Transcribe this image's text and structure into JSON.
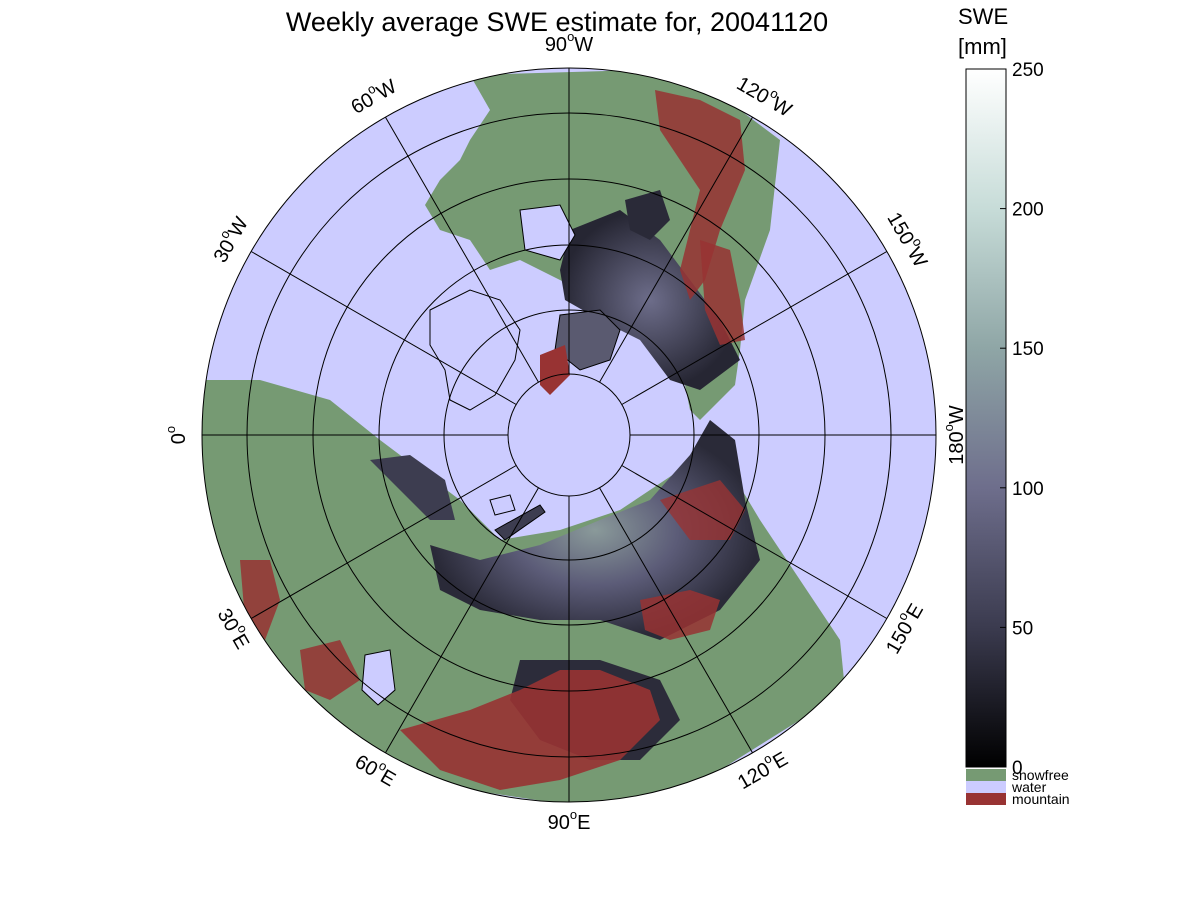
{
  "title": "Weekly average SWE estimate for, 20041120",
  "colorbar": {
    "title_line1": "SWE",
    "title_line2": "[mm]",
    "min": 0,
    "max": 250,
    "ticks": [
      {
        "value": 0,
        "label": "0"
      },
      {
        "value": 50,
        "label": "50"
      },
      {
        "value": 100,
        "label": "100"
      },
      {
        "value": 150,
        "label": "150"
      },
      {
        "value": 200,
        "label": "200"
      },
      {
        "value": 250,
        "label": "250"
      }
    ],
    "stops": [
      "#000000",
      "#3b3b4f",
      "#6e6e8c",
      "#8fa6a6",
      "#c7dcd8",
      "#ffffff"
    ]
  },
  "categories": [
    {
      "label": "snowfree",
      "color": "#769a73"
    },
    {
      "label": "water",
      "color": "#ccccff"
    },
    {
      "label": "mountain",
      "color": "#983333"
    }
  ],
  "map": {
    "projection": "north-polar-stereographic",
    "ocean_color": "#ccccff",
    "land_color": "#769a73",
    "mountain_color": "#983333",
    "snow_color": "#4c4c66",
    "meridian_labels": [
      {
        "text": "90",
        "hemi": "W",
        "lon": -90
      },
      {
        "text": "120",
        "hemi": "W",
        "lon": -120
      },
      {
        "text": "150",
        "hemi": "W",
        "lon": -150
      },
      {
        "text": "180",
        "hemi": "W",
        "lon": 180
      },
      {
        "text": "150",
        "hemi": "E",
        "lon": 150
      },
      {
        "text": "120",
        "hemi": "E",
        "lon": 120
      },
      {
        "text": "90",
        "hemi": "E",
        "lon": 90
      },
      {
        "text": "60",
        "hemi": "E",
        "lon": 60
      },
      {
        "text": "30",
        "hemi": "E",
        "lon": 30
      },
      {
        "text": "0",
        "hemi": "",
        "lon": 0
      },
      {
        "text": "30",
        "hemi": "W",
        "lon": -30
      },
      {
        "text": "60",
        "hemi": "W",
        "lon": -60
      }
    ]
  }
}
